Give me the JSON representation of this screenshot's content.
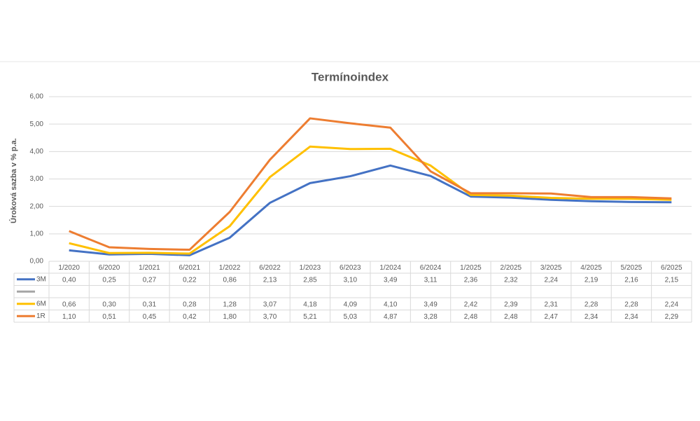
{
  "chart_data": {
    "type": "line",
    "title": "Termínoindex",
    "y_label": "Úroková sazba v % p.a.",
    "categories": [
      "1/2020",
      "6/2020",
      "1/2021",
      "6/2021",
      "1/2022",
      "6/2022",
      "1/2023",
      "6/2023",
      "1/2024",
      "6/2024",
      "1/2025",
      "2/2025",
      "3/2025",
      "4/2025",
      "5/2025",
      "6/2025"
    ],
    "series": [
      {
        "name": "3M",
        "color": "#4472c4",
        "values": [
          0.4,
          0.25,
          0.27,
          0.22,
          0.86,
          2.13,
          2.85,
          3.1,
          3.49,
          3.11,
          2.36,
          2.32,
          2.24,
          2.19,
          2.16,
          2.15
        ],
        "value_labels": [
          "0,40",
          "0,25",
          "0,27",
          "0,22",
          "0,86",
          "2,13",
          "2,85",
          "3,10",
          "3,49",
          "3,11",
          "2,36",
          "2,32",
          "2,24",
          "2,19",
          "2,16",
          "2,15"
        ]
      },
      {
        "name": null,
        "color": "#a5a5a5",
        "values": [
          null,
          null,
          null,
          null,
          null,
          null,
          null,
          null,
          null,
          null,
          null,
          null,
          null,
          null,
          null,
          null
        ]
      },
      {
        "name": "6M",
        "color": "#ffc000",
        "values": [
          0.66,
          0.3,
          0.31,
          0.28,
          1.28,
          3.07,
          4.18,
          4.09,
          4.1,
          3.49,
          2.42,
          2.39,
          2.31,
          2.28,
          2.28,
          2.24
        ],
        "value_labels": [
          "0,66",
          "0,30",
          "0,31",
          "0,28",
          "1,28",
          "3,07",
          "4,18",
          "4,09",
          "4,10",
          "3,49",
          "2,42",
          "2,39",
          "2,31",
          "2,28",
          "2,28",
          "2,24"
        ]
      },
      {
        "name": "1R",
        "color": "#ed7d31",
        "values": [
          1.1,
          0.51,
          0.45,
          0.42,
          1.8,
          3.7,
          5.21,
          5.03,
          4.87,
          3.28,
          2.48,
          2.48,
          2.47,
          2.34,
          2.34,
          2.29
        ],
        "value_labels": [
          "1,10",
          "0,51",
          "0,45",
          "0,42",
          "1,80",
          "3,70",
          "5,21",
          "5,03",
          "4,87",
          "3,28",
          "2,48",
          "2,48",
          "2,47",
          "2,34",
          "2,34",
          "2,29"
        ]
      }
    ],
    "ylim": [
      0,
      6
    ],
    "yticks": [
      {
        "value": 0,
        "label": "0,00"
      },
      {
        "value": 1,
        "label": "1,00"
      },
      {
        "value": 2,
        "label": "2,00"
      },
      {
        "value": 3,
        "label": "3,00"
      },
      {
        "value": 4,
        "label": "4,00"
      },
      {
        "value": 5,
        "label": "5,00"
      },
      {
        "value": 6,
        "label": "6,00"
      }
    ],
    "grid": true
  }
}
